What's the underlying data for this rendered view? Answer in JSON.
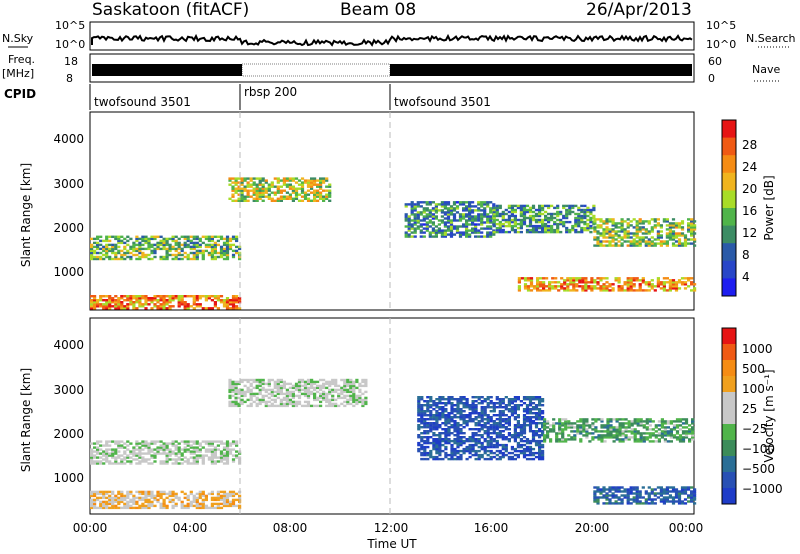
{
  "header": {
    "site": "Saskatoon (fitACF)",
    "beam": "Beam 08",
    "date": "26/Apr/2013"
  },
  "top_panels": {
    "nsky_label": "N.Sky",
    "nsky_ticks": [
      "10^5",
      "10^0"
    ],
    "nsearch_label": "N.Search",
    "nsearch_ticks": [
      "10^5",
      "10^0"
    ],
    "freq_label_line1": "Freq.",
    "freq_label_line2": "[MHz]",
    "freq_ticks": [
      "18",
      "8"
    ],
    "nave_label": "Nave",
    "nave_ticks": [
      "60",
      "0"
    ],
    "cpid_label": "CPID",
    "cpid_segments": [
      {
        "name": "twofsound 3501",
        "start_h": 0,
        "end_h": 6
      },
      {
        "name": "rbsp 200",
        "start_h": 6,
        "end_h": 12
      },
      {
        "name": "twofsound 3501",
        "start_h": 12,
        "end_h": 24
      }
    ]
  },
  "colors": {
    "power_scale": [
      "#1e1ef0",
      "#2846c8",
      "#2a5aa8",
      "#3c8c64",
      "#50b44a",
      "#a8dc28",
      "#f0b41e",
      "#f58c14",
      "#f05a14",
      "#e61414"
    ],
    "velocity_scale": [
      "#1e3cc8",
      "#2850b4",
      "#2a6e96",
      "#3c8c5a",
      "#50b44a",
      "#c8c8c8",
      "#c8c8c8",
      "#f0a01e",
      "#f58c14",
      "#f05a14",
      "#e61414"
    ]
  },
  "chart_data": [
    {
      "type": "heatmap",
      "name": "power-panel",
      "ylabel": "Slant Range [km]",
      "ylim": [
        180,
        4600
      ],
      "yticks": [
        "1000",
        "2000",
        "3000",
        "4000"
      ],
      "xlim": [
        0,
        24
      ],
      "colorbar": {
        "label": "Power [dB]",
        "ticks": [
          "4",
          "8",
          "12",
          "16",
          "20",
          "24",
          "28"
        ],
        "range": [
          0,
          32
        ]
      },
      "bands": [
        {
          "t0": 0,
          "t1": 6,
          "r0": 1300,
          "r1": 1800,
          "level": 0.45
        },
        {
          "t0": 0,
          "t1": 6,
          "r0": 200,
          "r1": 500,
          "level": 0.8
        },
        {
          "t0": 5.5,
          "t1": 9.5,
          "r0": 2600,
          "r1": 3100,
          "level": 0.55
        },
        {
          "t0": 12.5,
          "t1": 16,
          "r0": 1800,
          "r1": 2600,
          "level": 0.3
        },
        {
          "t0": 16,
          "t1": 20,
          "r0": 1900,
          "r1": 2500,
          "level": 0.35
        },
        {
          "t0": 20,
          "t1": 24,
          "r0": 1600,
          "r1": 2200,
          "level": 0.5
        },
        {
          "t0": 17,
          "t1": 24,
          "r0": 600,
          "r1": 900,
          "level": 0.75
        }
      ]
    },
    {
      "type": "heatmap",
      "name": "velocity-panel",
      "ylabel": "Slant Range [km]",
      "ylim": [
        180,
        4600
      ],
      "yticks": [
        "1000",
        "2000",
        "3000",
        "4000"
      ],
      "xlim": [
        0,
        24
      ],
      "xticks": [
        "00:00",
        "04:00",
        "08:00",
        "12:00",
        "16:00",
        "20:00",
        "00:00"
      ],
      "xlabel": "Time UT",
      "colorbar": {
        "label": "Velocity [m s⁻¹]",
        "ticks": [
          "1000",
          "500",
          "100",
          "25",
          "−25",
          "−100",
          "−500",
          "−1000"
        ]
      },
      "bands": [
        {
          "t0": 0,
          "t1": 6,
          "r0": 1300,
          "r1": 1800,
          "level": 0.0
        },
        {
          "t0": 0,
          "t1": 6,
          "r0": 300,
          "r1": 700,
          "level": 0.3
        },
        {
          "t0": 5.5,
          "t1": 11,
          "r0": 2600,
          "r1": 3200,
          "level": 0.0
        },
        {
          "t0": 13,
          "t1": 18,
          "r0": 1400,
          "r1": 2800,
          "level": -0.8
        },
        {
          "t0": 18,
          "t1": 24,
          "r0": 1800,
          "r1": 2300,
          "level": -0.3
        },
        {
          "t0": 20,
          "t1": 24,
          "r0": 400,
          "r1": 800,
          "level": -0.7
        }
      ]
    }
  ]
}
